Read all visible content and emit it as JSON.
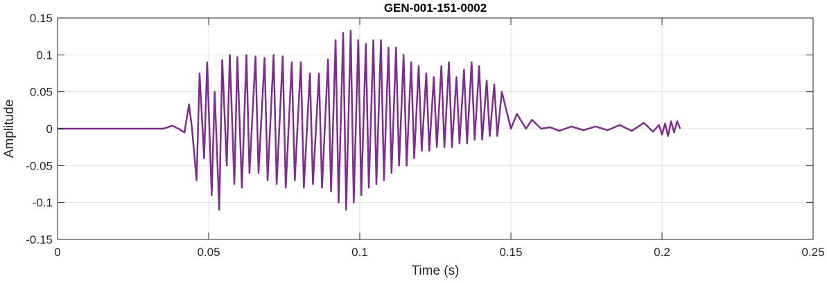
{
  "chart_data": {
    "type": "line",
    "title": "GEN-001-151-0002",
    "xlabel": "Time (s)",
    "ylabel": "Amplitude",
    "xlim": [
      0,
      0.25
    ],
    "ylim": [
      -0.15,
      0.15
    ],
    "grid": true,
    "x_ticks": [
      0,
      0.05,
      0.1,
      0.15,
      0.2,
      0.25
    ],
    "x_tick_labels": [
      "0",
      "0.05",
      "0.1",
      "0.15",
      "0.2",
      "0.25"
    ],
    "y_ticks": [
      -0.15,
      -0.1,
      -0.05,
      0,
      0.05,
      0.1,
      0.15
    ],
    "y_tick_labels": [
      "-0.15",
      "-0.1",
      "-0.05",
      "0",
      "0.05",
      "0.1",
      "0.15"
    ],
    "series": [
      {
        "color": "#7e2f8e",
        "x": [
          0,
          0.005,
          0.01,
          0.015,
          0.02,
          0.025,
          0.03,
          0.035,
          0.038,
          0.04,
          0.042,
          0.0435,
          0.0445,
          0.046,
          0.047,
          0.0485,
          0.0495,
          0.051,
          0.052,
          0.0535,
          0.0545,
          0.056,
          0.057,
          0.0585,
          0.0595,
          0.061,
          0.0625,
          0.0635,
          0.0655,
          0.0665,
          0.0685,
          0.0695,
          0.0715,
          0.0725,
          0.0745,
          0.0755,
          0.0775,
          0.0785,
          0.0805,
          0.0815,
          0.0835,
          0.0845,
          0.0865,
          0.0875,
          0.0895,
          0.0905,
          0.092,
          0.093,
          0.0945,
          0.0955,
          0.097,
          0.098,
          0.0995,
          0.1005,
          0.102,
          0.103,
          0.1045,
          0.1055,
          0.107,
          0.108,
          0.1095,
          0.1105,
          0.112,
          0.113,
          0.1145,
          0.1155,
          0.117,
          0.118,
          0.1195,
          0.1205,
          0.122,
          0.123,
          0.1245,
          0.1255,
          0.127,
          0.128,
          0.1295,
          0.1305,
          0.132,
          0.133,
          0.1345,
          0.1355,
          0.137,
          0.138,
          0.1395,
          0.1405,
          0.142,
          0.143,
          0.1445,
          0.1455,
          0.147,
          0.1485,
          0.15,
          0.152,
          0.155,
          0.157,
          0.16,
          0.163,
          0.166,
          0.17,
          0.174,
          0.178,
          0.182,
          0.186,
          0.19,
          0.194,
          0.197,
          0.199,
          0.2,
          0.201,
          0.202,
          0.203,
          0.204,
          0.205,
          0.206
        ],
        "y": [
          0.0,
          0.0,
          0.0,
          0.0,
          0.0,
          0.0,
          0.0,
          0.0,
          0.004,
          0.0,
          -0.005,
          0.033,
          0.0,
          -0.07,
          0.075,
          -0.04,
          0.09,
          -0.09,
          0.05,
          -0.11,
          0.093,
          -0.05,
          0.1,
          -0.075,
          0.097,
          -0.08,
          0.1,
          -0.06,
          0.098,
          -0.06,
          0.096,
          -0.07,
          0.1,
          -0.075,
          0.098,
          -0.08,
          0.09,
          -0.07,
          0.09,
          -0.08,
          0.075,
          -0.075,
          0.075,
          -0.08,
          0.094,
          -0.085,
          0.12,
          -0.1,
          0.13,
          -0.11,
          0.133,
          -0.1,
          0.12,
          -0.09,
          0.115,
          -0.08,
          0.12,
          -0.075,
          0.12,
          -0.07,
          0.11,
          -0.06,
          0.11,
          -0.05,
          0.1,
          -0.05,
          0.09,
          -0.04,
          0.085,
          -0.03,
          0.075,
          -0.03,
          0.07,
          -0.025,
          0.085,
          -0.025,
          0.09,
          -0.025,
          0.07,
          -0.02,
          0.08,
          -0.02,
          0.09,
          -0.015,
          0.085,
          -0.015,
          0.065,
          -0.01,
          0.06,
          -0.01,
          0.05,
          0.025,
          0.0,
          0.02,
          0.0,
          0.012,
          0.0,
          0.002,
          -0.003,
          0.003,
          -0.002,
          0.003,
          -0.002,
          0.005,
          -0.003,
          0.008,
          -0.004,
          0.005,
          -0.008,
          0.007,
          -0.01,
          0.01,
          -0.005,
          0.01,
          0.0
        ]
      }
    ]
  }
}
